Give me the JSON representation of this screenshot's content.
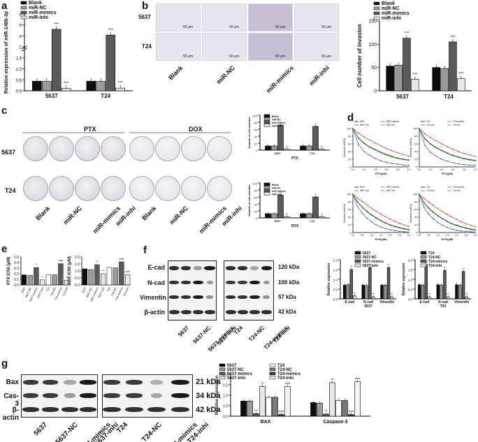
{
  "panels": {
    "a": "a",
    "b": "b",
    "c": "c",
    "d": "d",
    "e": "e",
    "f": "f",
    "g": "g"
  },
  "common": {
    "cells": [
      "5637",
      "T24"
    ],
    "conditions": [
      "Blank",
      "miR-NC",
      "miR-mimics",
      "miR-inhi"
    ],
    "legend": [
      "Blank",
      "miR-NC",
      "miR-mimics",
      "miR-inhi"
    ],
    "sig": "***"
  },
  "panel_b": {
    "scale_bar": "50 μm"
  },
  "panel_c": {
    "drug_labels": [
      "PTX",
      "DOX"
    ]
  },
  "panel_f": {
    "proteins": [
      "E-cad",
      "N-cad",
      "Vimentin",
      "β-actin"
    ],
    "sizes": [
      "120 kDa",
      "100 kDa",
      "57 kDa",
      "42 kDa"
    ],
    "lanes": [
      "5637",
      "5637-NC",
      "5637-mimics",
      "5637-inhi",
      "T24",
      "T24-NC",
      "T24-mimics",
      "T24-inhi"
    ]
  },
  "panel_g": {
    "proteins": [
      "Bax",
      "Cas-3",
      "β-actin"
    ],
    "sizes": [
      "21 kDa",
      "34 kDa",
      "42 kDa"
    ],
    "lanes": [
      "5637",
      "5637-NC",
      "5637-mimics",
      "5637-inhi",
      "T24",
      "T24-NC",
      "T24-mimics",
      "T24-inhi"
    ]
  },
  "chart_data": [
    {
      "id": "a",
      "type": "bar",
      "ylabel": "Relative expression of miR-148b-3p",
      "categories": [
        "5637",
        "T24"
      ],
      "ylim": [
        0,
        8
      ],
      "yticks": [
        "0.0",
        "0.5",
        "1.0",
        "1.5",
        "2",
        "4",
        "6",
        "8"
      ],
      "series": [
        {
          "name": "Blank",
          "values": [
            1.0,
            1.0
          ]
        },
        {
          "name": "miR-NC",
          "values": [
            0.98,
            0.98
          ]
        },
        {
          "name": "miR-mimics",
          "values": [
            6.4,
            5.8
          ]
        },
        {
          "name": "miR-inhi",
          "values": [
            0.25,
            0.28
          ]
        }
      ],
      "sig": [
        "",
        "",
        "***",
        "***"
      ]
    },
    {
      "id": "b",
      "type": "bar",
      "ylabel": "Cell number of invasion",
      "categories": [
        "5637",
        "T24"
      ],
      "ylim": [
        0,
        150
      ],
      "yticks": [
        "0",
        "50",
        "100",
        "150"
      ],
      "series": [
        {
          "name": "Blank",
          "values": [
            53,
            50
          ]
        },
        {
          "name": "miR-NC",
          "values": [
            55,
            48
          ]
        },
        {
          "name": "miR-mimics",
          "values": [
            113,
            105
          ]
        },
        {
          "name": "miR-inhi",
          "values": [
            25,
            26
          ]
        }
      ],
      "sig": [
        "",
        "",
        "***",
        "***"
      ]
    },
    {
      "id": "c1",
      "type": "bar",
      "ylabel": "Number of cell colonies",
      "xlabel": "PTX",
      "categories": [
        "5637",
        "T24"
      ],
      "ylim": [
        0,
        100
      ],
      "yticks": [
        "0",
        "20",
        "40",
        "60",
        "80",
        "100"
      ],
      "series": [
        {
          "name": "Blank",
          "values": [
            12,
            12
          ]
        },
        {
          "name": "miR-NC",
          "values": [
            12,
            12
          ]
        },
        {
          "name": "miR-mimics",
          "values": [
            72,
            68
          ]
        },
        {
          "name": "miR-inhi",
          "values": [
            3,
            3
          ]
        }
      ],
      "sig": [
        "",
        "",
        "***",
        "***"
      ]
    },
    {
      "id": "c2",
      "type": "bar",
      "ylabel": "Number of cell colonies",
      "xlabel": "DOX",
      "categories": [
        "5637",
        "T24"
      ],
      "ylim": [
        0,
        100
      ],
      "yticks": [
        "0",
        "20",
        "40",
        "60",
        "80",
        "100"
      ],
      "series": [
        {
          "name": "Blank",
          "values": [
            12,
            12
          ]
        },
        {
          "name": "miR-NC",
          "values": [
            12,
            12
          ]
        },
        {
          "name": "miR-mimics",
          "values": [
            65,
            60
          ]
        },
        {
          "name": "miR-inhi",
          "values": [
            3,
            3
          ]
        }
      ],
      "sig": [
        "",
        "",
        "***",
        "***"
      ]
    },
    {
      "id": "d1",
      "type": "line",
      "xlabel": "PTX(μM)",
      "ylabel": "Survival cell(%)",
      "xlim": [
        0,
        1.0
      ],
      "ylim": [
        0,
        100
      ],
      "x": [
        0.0,
        0.1,
        0.2,
        0.3,
        0.4,
        0.5,
        0.6,
        0.7,
        0.8,
        0.9,
        1.0
      ],
      "series": [
        {
          "name": "5637",
          "values": [
            100,
            75,
            62,
            52,
            45,
            38,
            32,
            27,
            23,
            20,
            18
          ]
        },
        {
          "name": "5637-mimics",
          "values": [
            100,
            88,
            78,
            70,
            62,
            55,
            48,
            42,
            37,
            32,
            28
          ]
        },
        {
          "name": "5637-inhi",
          "values": [
            100,
            58,
            40,
            30,
            22,
            16,
            12,
            9,
            7,
            5,
            4
          ]
        },
        {
          "name": "5637-NC",
          "values": [
            100,
            74,
            61,
            51,
            44,
            37,
            31,
            26,
            22,
            19,
            17
          ]
        }
      ]
    },
    {
      "id": "d2",
      "type": "line",
      "xlabel": "PTX(μM)",
      "ylabel": "Survival cell(%)",
      "xlim": [
        0,
        1.0
      ],
      "ylim": [
        0,
        100
      ],
      "x": [
        0.0,
        0.1,
        0.2,
        0.3,
        0.4,
        0.5,
        0.6,
        0.7,
        0.8,
        0.9,
        1.0
      ],
      "series": [
        {
          "name": "T24",
          "values": [
            100,
            73,
            60,
            50,
            43,
            36,
            30,
            26,
            22,
            19,
            17
          ]
        },
        {
          "name": "T24-mimics",
          "values": [
            100,
            86,
            76,
            68,
            60,
            53,
            46,
            40,
            35,
            31,
            27
          ]
        },
        {
          "name": "T24-inhi",
          "values": [
            100,
            56,
            38,
            28,
            20,
            15,
            11,
            8,
            6,
            5,
            4
          ]
        },
        {
          "name": "T24-NC",
          "values": [
            100,
            72,
            59,
            49,
            42,
            35,
            29,
            25,
            21,
            18,
            16
          ]
        }
      ]
    },
    {
      "id": "d3",
      "type": "line",
      "xlabel": "DOX(μM)",
      "ylabel": "Survival cell(%)",
      "xlim": [
        0,
        3.0
      ],
      "ylim": [
        0,
        100
      ],
      "x": [
        0.0,
        0.25,
        0.5,
        0.75,
        1.0,
        1.25,
        1.5,
        1.75,
        2.0,
        2.25,
        2.5,
        2.75,
        3.0
      ],
      "series": [
        {
          "name": "5637",
          "values": [
            100,
            80,
            66,
            55,
            46,
            38,
            31,
            25,
            20,
            16,
            13,
            10,
            8
          ]
        },
        {
          "name": "5637-mimics",
          "values": [
            100,
            90,
            81,
            72,
            63,
            55,
            48,
            41,
            35,
            29,
            24,
            20,
            16
          ]
        },
        {
          "name": "5637-inhi",
          "values": [
            100,
            68,
            50,
            38,
            28,
            20,
            14,
            10,
            7,
            5,
            3,
            2,
            1
          ]
        },
        {
          "name": "5637-NC",
          "values": [
            100,
            79,
            65,
            54,
            45,
            37,
            30,
            24,
            19,
            15,
            12,
            9,
            7
          ]
        }
      ]
    },
    {
      "id": "d4",
      "type": "line",
      "xlabel": "DOX(μM)",
      "ylabel": "Survival cell(%)",
      "xlim": [
        0,
        3.0
      ],
      "ylim": [
        0,
        100
      ],
      "x": [
        0.0,
        0.25,
        0.5,
        0.75,
        1.0,
        1.25,
        1.5,
        1.75,
        2.0,
        2.25,
        2.5,
        2.75,
        3.0
      ],
      "series": [
        {
          "name": "T24",
          "values": [
            100,
            78,
            64,
            53,
            44,
            36,
            29,
            23,
            19,
            15,
            12,
            9,
            7
          ]
        },
        {
          "name": "T24-mimics",
          "values": [
            100,
            89,
            80,
            71,
            62,
            54,
            47,
            40,
            34,
            28,
            23,
            19,
            15
          ]
        },
        {
          "name": "T24-inhi",
          "values": [
            100,
            66,
            48,
            36,
            26,
            19,
            13,
            9,
            6,
            4,
            3,
            2,
            1
          ]
        },
        {
          "name": "T24-NC",
          "values": [
            100,
            77,
            63,
            52,
            43,
            35,
            28,
            22,
            18,
            14,
            11,
            8,
            6
          ]
        }
      ]
    },
    {
      "id": "e1",
      "type": "bar",
      "ylabel": "PTX IC50 (μM)",
      "ylim": [
        0,
        0.5
      ],
      "yticks": [
        "0.0",
        "0.1",
        "0.2",
        "0.3",
        "0.4",
        "0.5"
      ],
      "categories": [
        "5637",
        "5637-NC",
        "5637-mimics",
        "5637-inhi",
        "T24",
        "T24-NC",
        "T24-mimics",
        "T24-inhi"
      ],
      "values": [
        0.18,
        0.17,
        0.31,
        0.09,
        0.18,
        0.18,
        0.38,
        0.08
      ],
      "sig": [
        "",
        "",
        "**",
        "**",
        "",
        "",
        "###",
        "#"
      ]
    },
    {
      "id": "e2",
      "type": "bar",
      "ylabel": "DOX IC50 (μM)",
      "ylim": [
        0,
        2.0
      ],
      "yticks": [
        "0.0",
        "0.5",
        "1.0",
        "1.5",
        "2.0"
      ],
      "categories": [
        "5637",
        "5637-NC",
        "5637-mimics",
        "5637-inhi",
        "T24",
        "T24-NC",
        "T24-mimics",
        "T24-inhi"
      ],
      "values": [
        1.15,
        1.1,
        1.45,
        0.8,
        1.25,
        1.22,
        1.65,
        0.72
      ],
      "sig": [
        "",
        "",
        "***",
        "***",
        "",
        "",
        "###",
        "###"
      ]
    },
    {
      "id": "f1",
      "type": "bar",
      "ylabel": "Relative expression",
      "xlabel": "5637",
      "categories": [
        "E-cad",
        "N-cad",
        "Vimentin"
      ],
      "ylim": [
        0,
        2.0
      ],
      "yticks": [
        "0.0",
        "0.5",
        "1.0",
        "1.5",
        "2.0"
      ],
      "series": [
        {
          "name": "5637",
          "values": [
            0.7,
            0.7,
            0.7
          ]
        },
        {
          "name": "5637-NC",
          "values": [
            0.72,
            0.68,
            0.7
          ]
        },
        {
          "name": "5637-mimics",
          "values": [
            1.5,
            1.6,
            1.6
          ]
        },
        {
          "name": "5637-inhi",
          "values": [
            0.15,
            0.1,
            0.1
          ]
        }
      ],
      "sig": [
        "",
        "",
        "***",
        "***"
      ]
    },
    {
      "id": "f2",
      "type": "bar",
      "ylabel": "Relative expression",
      "xlabel": "T24",
      "categories": [
        "E-cad",
        "N-cad",
        "Vimentin"
      ],
      "ylim": [
        0,
        2.0
      ],
      "yticks": [
        "0.0",
        "0.5",
        "1.0",
        "1.5",
        "2.0"
      ],
      "series": [
        {
          "name": "T24",
          "values": [
            0.72,
            0.72,
            0.72
          ]
        },
        {
          "name": "T24-NC",
          "values": [
            0.7,
            0.7,
            0.7
          ]
        },
        {
          "name": "T24-mimics",
          "values": [
            1.75,
            1.45,
            1.4
          ]
        },
        {
          "name": "T24-inhi",
          "values": [
            0.1,
            0.1,
            0.1
          ]
        }
      ],
      "sig": [
        "",
        "",
        "***",
        "***"
      ]
    },
    {
      "id": "g",
      "type": "bar",
      "ylabel": "Relative expression",
      "categories": [
        "BAX",
        "Caspase-3"
      ],
      "ylim": [
        0,
        2.0
      ],
      "yticks": [
        "0.0",
        "0.5",
        "1.0",
        "1.5",
        "2.0"
      ],
      "series": [
        {
          "name": "5637",
          "values": [
            0.72,
            0.65
          ]
        },
        {
          "name": "5637-NC",
          "values": [
            0.72,
            0.62
          ]
        },
        {
          "name": "5637-mimics",
          "values": [
            0.12,
            0.1
          ]
        },
        {
          "name": "5637-inhi",
          "values": [
            1.42,
            1.6
          ]
        },
        {
          "name": "T24",
          "values": [
            0.9,
            0.75
          ]
        },
        {
          "name": "T24-NC",
          "values": [
            0.9,
            0.75
          ]
        },
        {
          "name": "T24-mimics",
          "values": [
            0.08,
            0.08
          ]
        },
        {
          "name": "T24-inhi",
          "values": [
            1.42,
            1.65
          ]
        }
      ],
      "sig": [
        "",
        "",
        "***",
        "***",
        "",
        "",
        "###",
        "###"
      ]
    }
  ],
  "colors": {
    "c1": "#0d0d0d",
    "c2": "#9a9a9a",
    "c3": "#5a5a5a",
    "c4": "#e8e8e8",
    "red": "#e8423a",
    "green": "#3d9a3d",
    "blue": "#4a5fd0"
  }
}
